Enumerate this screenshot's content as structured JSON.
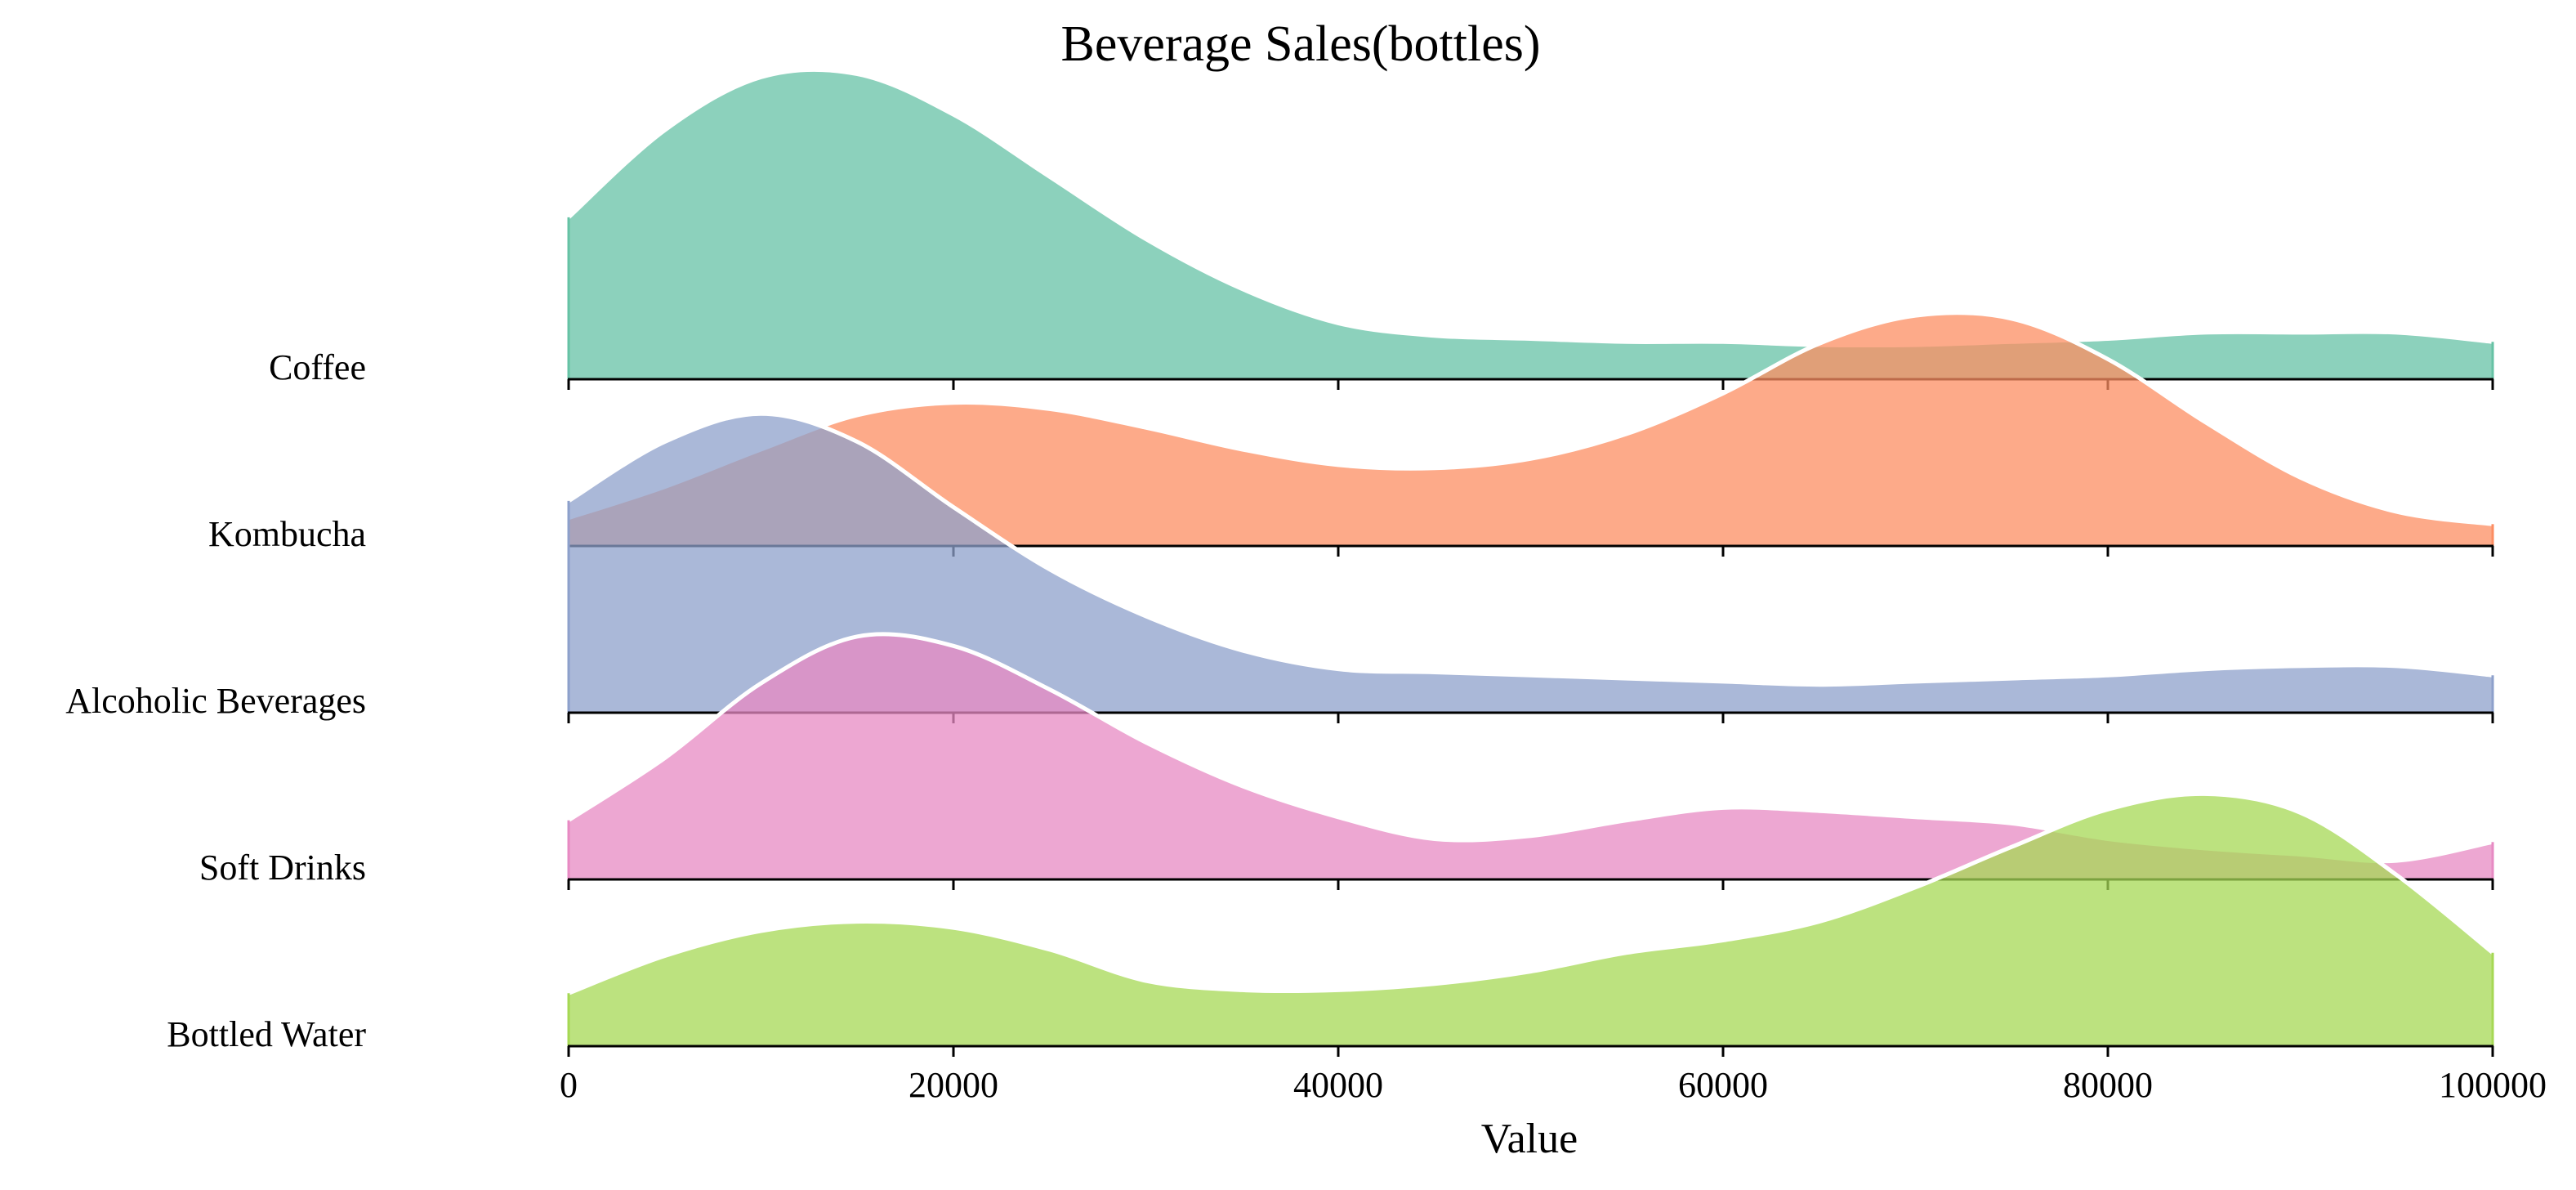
{
  "chart_data": {
    "type": "area",
    "subtype": "ridgeline",
    "title": "Beverage Sales(bottles)",
    "xlabel": "Value",
    "ylabel": "",
    "xlim": [
      0,
      100000
    ],
    "x_ticks": [
      0,
      20000,
      40000,
      60000,
      80000,
      100000
    ],
    "x_tick_labels": [
      "0",
      "20000",
      "40000",
      "60000",
      "80000",
      "100000"
    ],
    "grid": false,
    "legend": "none",
    "density_scale": "relative (peak of Coffee = 1.0)",
    "x": [
      0,
      5000,
      10000,
      15000,
      20000,
      25000,
      30000,
      35000,
      40000,
      45000,
      50000,
      55000,
      60000,
      65000,
      70000,
      75000,
      80000,
      85000,
      90000,
      95000,
      100000
    ],
    "series": [
      {
        "name": "Coffee",
        "color": "#66c2a5",
        "values": [
          0.52,
          0.8,
          0.97,
          0.98,
          0.85,
          0.65,
          0.45,
          0.29,
          0.18,
          0.14,
          0.13,
          0.12,
          0.12,
          0.11,
          0.11,
          0.12,
          0.13,
          0.15,
          0.15,
          0.15,
          0.12
        ]
      },
      {
        "name": "Kombucha",
        "color": "#fc8d62",
        "values": [
          0.09,
          0.19,
          0.31,
          0.42,
          0.46,
          0.44,
          0.38,
          0.31,
          0.26,
          0.25,
          0.28,
          0.36,
          0.49,
          0.65,
          0.74,
          0.73,
          0.6,
          0.4,
          0.22,
          0.11,
          0.07
        ]
      },
      {
        "name": "Alcoholic Beverages",
        "color": "#8da0cb",
        "values": [
          0.68,
          0.87,
          0.96,
          0.87,
          0.66,
          0.46,
          0.31,
          0.2,
          0.14,
          0.13,
          0.12,
          0.11,
          0.1,
          0.09,
          0.1,
          0.11,
          0.12,
          0.14,
          0.15,
          0.15,
          0.12
        ]
      },
      {
        "name": "Soft Drinks",
        "color": "#e78ac3",
        "values": [
          0.19,
          0.39,
          0.63,
          0.78,
          0.75,
          0.61,
          0.44,
          0.3,
          0.2,
          0.13,
          0.14,
          0.19,
          0.23,
          0.22,
          0.2,
          0.18,
          0.13,
          0.1,
          0.08,
          0.06,
          0.12
        ]
      },
      {
        "name": "Bottled Water",
        "color": "#a6d854",
        "values": [
          0.17,
          0.29,
          0.37,
          0.4,
          0.38,
          0.31,
          0.21,
          0.18,
          0.18,
          0.2,
          0.24,
          0.3,
          0.34,
          0.4,
          0.51,
          0.64,
          0.76,
          0.81,
          0.75,
          0.55,
          0.3
        ]
      }
    ]
  }
}
